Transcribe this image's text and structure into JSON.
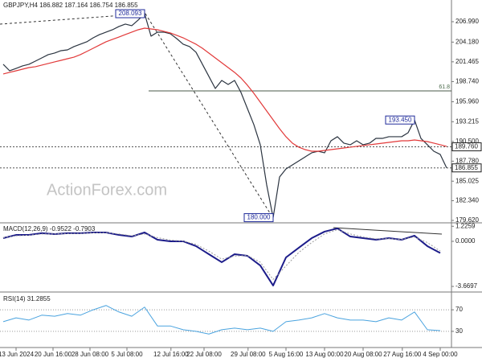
{
  "chart_data": [
    {
      "type": "line",
      "title": "GBPJPY,H4  186.882 187.164 186.754 186.855",
      "watermark": "ActionForex.com",
      "xlim": [
        -0.5,
        69.75
      ],
      "xticks": [
        {
          "value": 2,
          "label": "13 Jun 2024"
        },
        {
          "value": 7.75,
          "label": "20 Jun 16:00"
        },
        {
          "value": 13.5,
          "label": "28 Jun 08:00"
        },
        {
          "value": 19.25,
          "label": "5 Jul 08:00"
        },
        {
          "value": 26.1,
          "label": "12 Jul 16:00"
        },
        {
          "value": 31.25,
          "label": "22 Jul 08:00"
        },
        {
          "value": 38.1,
          "label": "29 Jul 08:00"
        },
        {
          "value": 44,
          "label": "5 Aug 16:00"
        },
        {
          "value": 50,
          "label": "13 Aug 00:00"
        },
        {
          "value": 56,
          "label": "20 Aug 08:00"
        },
        {
          "value": 62.1,
          "label": "27 Aug 16:00"
        },
        {
          "value": 68,
          "label": "4 Sep 00:00"
        }
      ],
      "ylim": [
        179.4,
        208.87
      ],
      "yticks": [
        {
          "value": 206.99,
          "label": "206.990"
        },
        {
          "value": 204.18,
          "label": "204.180"
        },
        {
          "value": 201.465,
          "label": "201.465"
        },
        {
          "value": 198.74,
          "label": "198.740"
        },
        {
          "value": 195.96,
          "label": "195.960"
        },
        193.215,
        {
          "value": 190.5,
          "label": "190.500"
        },
        {
          "value": 187.78,
          "label": "187.780"
        },
        185.025,
        {
          "value": 182.34,
          "label": "182.340"
        },
        {
          "value": 179.62,
          "label": "179.620"
        }
      ],
      "grid": false,
      "series": [
        {
          "color": "#2b3440",
          "width": 1.2,
          "style": "solid",
          "values": [
            201.12,
            200.23,
            200.56,
            200.9,
            201.12,
            201.56,
            202.0,
            202.45,
            202.67,
            203.0,
            203.11,
            203.56,
            203.89,
            204.22,
            204.77,
            205.22,
            205.55,
            205.88,
            206.33,
            206.66,
            206.44,
            207.21,
            208.093,
            205.0,
            205.55,
            205.55,
            205.33,
            204.66,
            203.89,
            203.56,
            202.78,
            201.12,
            199.46,
            197.79,
            198.9,
            198.35,
            198.9,
            197.24,
            195.02,
            192.81,
            190.04,
            184.5,
            180.0,
            185.61,
            186.71,
            187.27,
            187.82,
            188.38,
            188.93,
            189.15,
            188.93,
            190.59,
            191.15,
            190.26,
            190.04,
            190.59,
            190.04,
            190.26,
            190.92,
            190.92,
            191.15,
            191.15,
            191.15,
            191.7,
            193.45,
            190.92,
            190.04,
            189.15,
            188.71,
            186.855
          ]
        },
        {
          "color": "#e23a3a",
          "width": 1.2,
          "style": "solid",
          "values": [
            199.79,
            200.01,
            200.23,
            200.45,
            200.67,
            200.79,
            201.01,
            201.23,
            201.45,
            201.67,
            201.89,
            202.11,
            202.45,
            202.89,
            203.33,
            203.78,
            204.22,
            204.55,
            204.88,
            205.22,
            205.55,
            205.88,
            206.1,
            205.99,
            205.88,
            205.66,
            205.44,
            205.11,
            204.77,
            204.33,
            203.89,
            203.33,
            202.67,
            202.0,
            201.34,
            200.67,
            200.01,
            199.23,
            198.24,
            197.13,
            195.91,
            194.69,
            193.47,
            192.25,
            191.15,
            190.26,
            189.71,
            189.37,
            189.15,
            189.15,
            189.26,
            189.37,
            189.48,
            189.59,
            189.71,
            189.82,
            189.93,
            190.04,
            190.15,
            190.26,
            190.37,
            190.48,
            190.59,
            190.59,
            190.7,
            190.59,
            190.48,
            190.26,
            190.04,
            189.82
          ]
        }
      ],
      "annotations": [
        {
          "x": 22,
          "value": 208.093,
          "label": "208.093"
        },
        {
          "x": 42,
          "value": 180.0,
          "label": "180.000"
        },
        {
          "x": 64,
          "value": 193.45,
          "label": "193.450"
        }
      ],
      "fib": {
        "value": 197.46,
        "label": "61.8"
      },
      "levels": [
        {
          "value": 189.76,
          "label": "189.760"
        },
        {
          "value": 186.855,
          "label": "186.855"
        }
      ]
    },
    {
      "type": "line",
      "title": "MACD(12,26,9) -0.9522 -0.7903",
      "xlim": [
        -0.25,
        34.875
      ],
      "ylim": [
        -4.06,
        1.44
      ],
      "yticks": [
        1.2259,
        {
          "value": 0,
          "label": "0.0000"
        },
        -3.6697
      ],
      "grid": false,
      "series": [
        {
          "color": "#1c1c8a",
          "width": 2,
          "style": "solid",
          "values": [
            0.26,
            0.52,
            0.52,
            0.66,
            0.59,
            0.66,
            0.66,
            0.72,
            0.72,
            0.52,
            0.39,
            0.72,
            0.13,
            0,
            0,
            -0.39,
            -1.05,
            -1.7,
            -1.05,
            -1.18,
            -1.97,
            -3.6,
            -1.31,
            -0.52,
            0.26,
            0.79,
            1.05,
            0.39,
            0.26,
            0.13,
            0.26,
            0.13,
            0.46,
            -0.39,
            -0.95
          ]
        },
        {
          "color": "#9a9a9a",
          "width": 1,
          "style": "dotted",
          "values": [
            0.3,
            0.45,
            0.5,
            0.6,
            0.6,
            0.63,
            0.65,
            0.69,
            0.71,
            0.6,
            0.45,
            0.6,
            0.3,
            0.1,
            0.02,
            -0.25,
            -0.8,
            -1.45,
            -1.2,
            -1.15,
            -1.7,
            -3.1,
            -2.0,
            -0.9,
            -0.1,
            0.6,
            0.95,
            0.6,
            0.35,
            0.2,
            0.22,
            0.15,
            0.35,
            -0.1,
            -0.79
          ]
        }
      ]
    },
    {
      "type": "line",
      "title": "RSI(14) 31.2855",
      "xlim": [
        -0.25,
        34.875
      ],
      "ylim": [
        0,
        100
      ],
      "yticks": [
        70,
        30
      ],
      "grid": true,
      "series": [
        {
          "color": "#4aa3df",
          "width": 1,
          "style": "solid",
          "values": [
            48,
            55,
            51,
            60,
            58,
            63,
            60,
            70,
            78,
            66,
            58,
            75,
            40,
            40,
            33,
            30,
            25,
            33,
            36,
            33,
            36,
            30,
            48,
            51,
            55,
            63,
            55,
            51,
            51,
            48,
            55,
            51,
            66,
            33,
            31.29
          ]
        }
      ]
    }
  ]
}
